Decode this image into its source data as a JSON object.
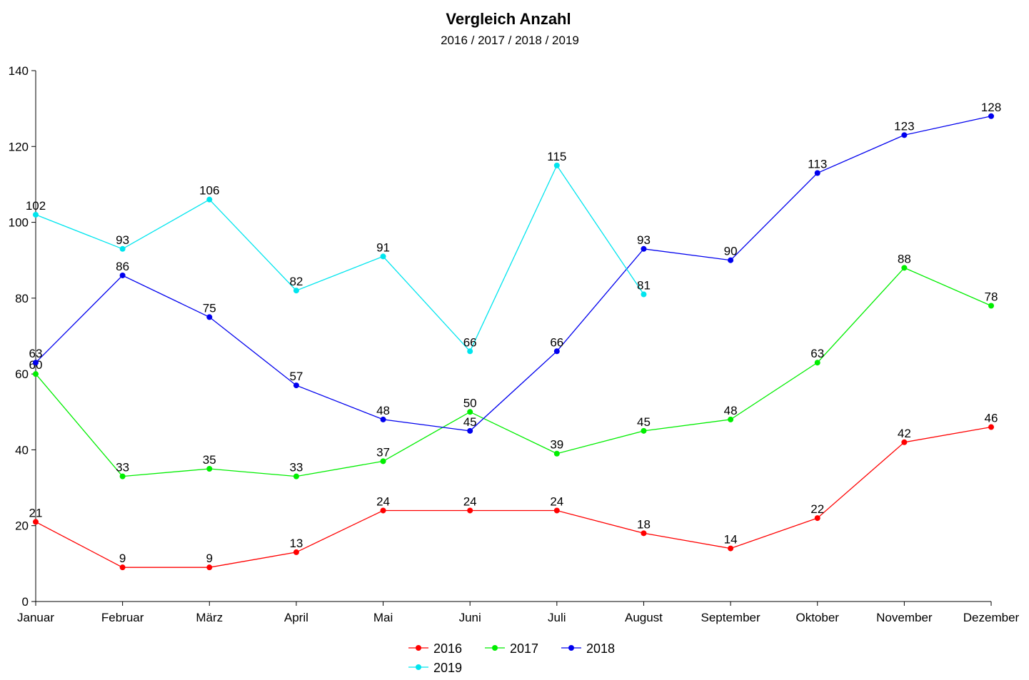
{
  "chart_data": {
    "type": "line",
    "title": "Vergleich Anzahl",
    "subtitle": "2016 / 2017 / 2018 / 2019",
    "xlabel": "",
    "ylabel": "",
    "categories": [
      "Januar",
      "Februar",
      "März",
      "April",
      "Mai",
      "Juni",
      "Juli",
      "August",
      "September",
      "Oktober",
      "November",
      "Dezember"
    ],
    "ylim": [
      0,
      140
    ],
    "yticks": [
      0,
      20,
      40,
      60,
      80,
      100,
      120,
      140
    ],
    "grid": false,
    "legend_position": "bottom",
    "series": [
      {
        "name": "2016",
        "color": "#ff0000",
        "values": [
          21,
          9,
          9,
          13,
          24,
          24,
          24,
          18,
          14,
          22,
          42,
          46
        ]
      },
      {
        "name": "2017",
        "color": "#00ee00",
        "values": [
          60,
          33,
          35,
          33,
          37,
          50,
          39,
          45,
          48,
          63,
          88,
          78
        ]
      },
      {
        "name": "2018",
        "color": "#0000ee",
        "values": [
          63,
          86,
          75,
          57,
          48,
          45,
          66,
          93,
          90,
          113,
          123,
          128
        ]
      },
      {
        "name": "2019",
        "color": "#00e5ee",
        "values": [
          102,
          93,
          106,
          82,
          91,
          66,
          115,
          81,
          null,
          null,
          null,
          null
        ]
      }
    ]
  }
}
